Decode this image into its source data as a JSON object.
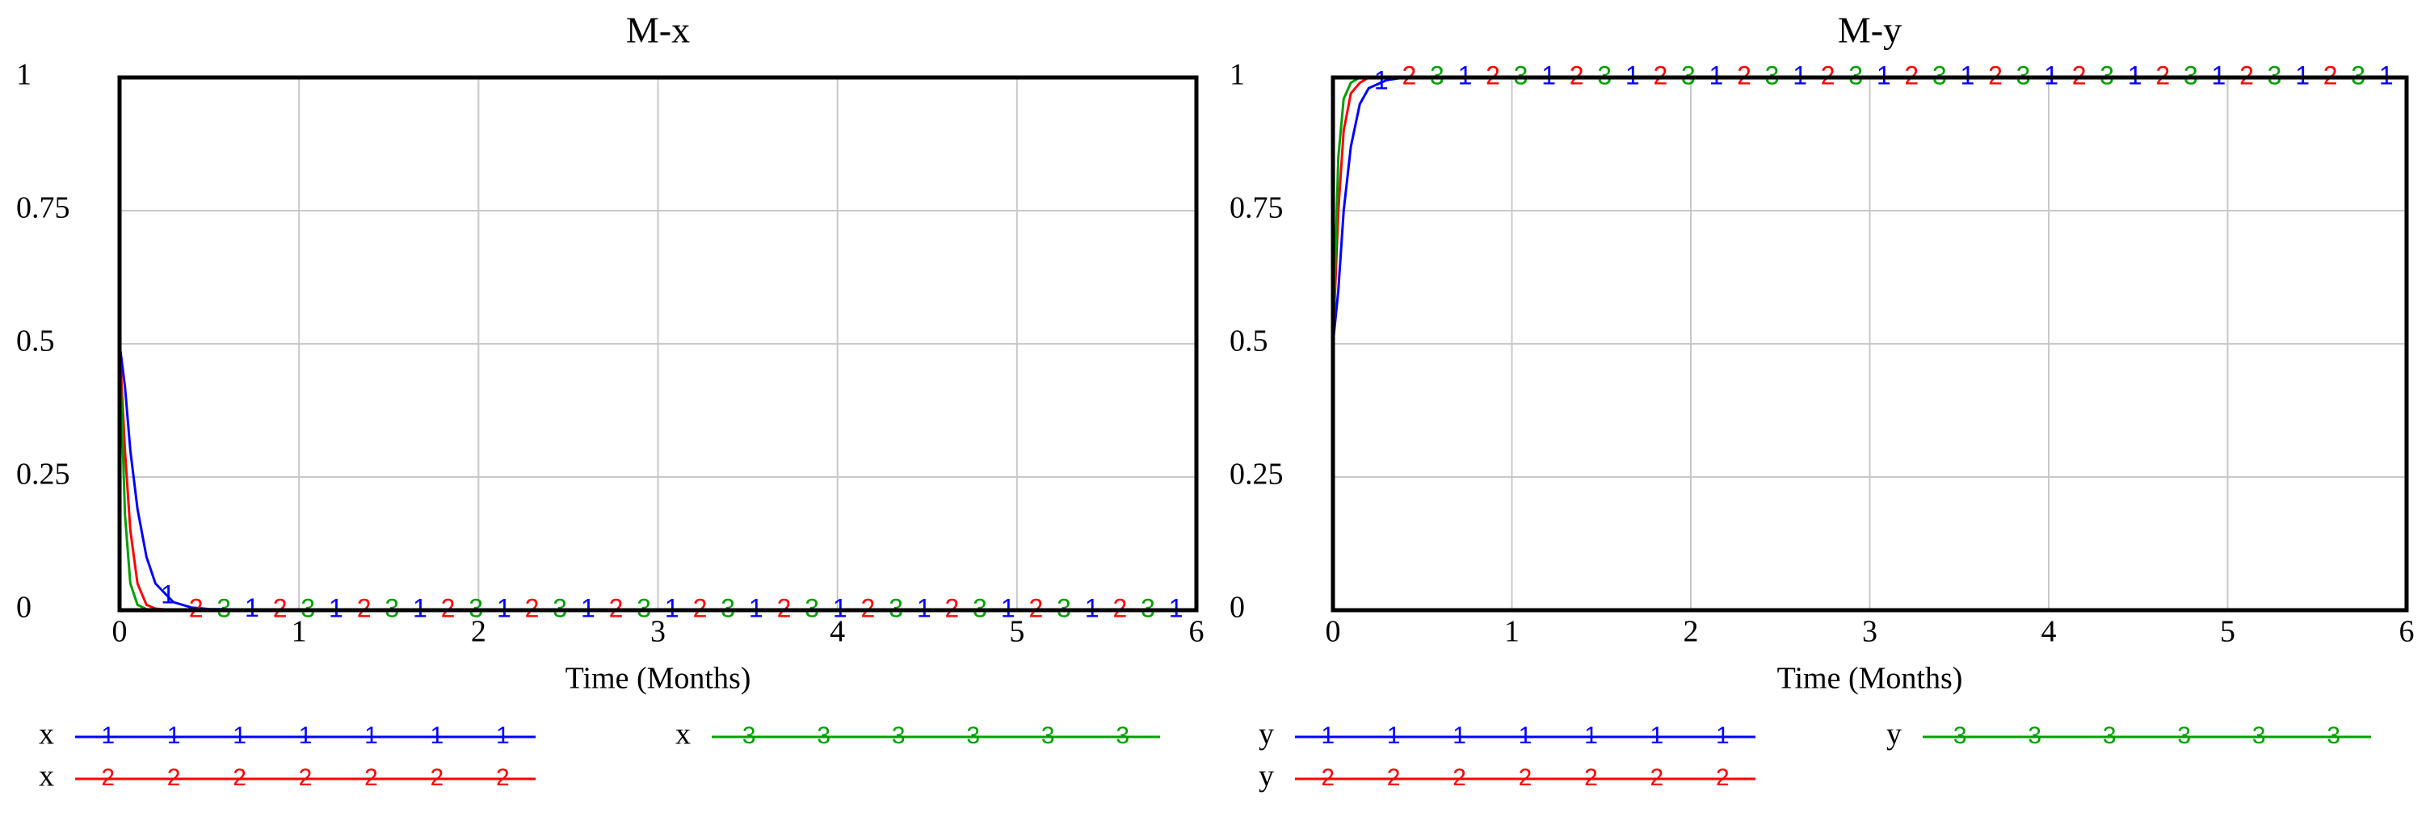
{
  "chart_data": [
    {
      "type": "line",
      "title": "M-x",
      "x_label": "Time (Months)",
      "x": [
        0,
        0.03,
        0.06,
        0.1,
        0.15,
        0.2,
        0.3,
        0.4,
        0.5,
        1,
        2,
        3,
        4,
        5,
        6
      ],
      "xlim": [
        0,
        6
      ],
      "xticks": [
        0,
        1,
        2,
        3,
        4,
        5,
        6
      ],
      "ylim": [
        0,
        1
      ],
      "yticks": [
        0,
        0.25,
        0.5,
        0.75,
        1
      ],
      "grid": true,
      "series": [
        {
          "name": "x",
          "marker": "1",
          "color": "#0000ff",
          "values": [
            0.5,
            0.42,
            0.3,
            0.19,
            0.1,
            0.05,
            0.015,
            0.005,
            0.002,
            0,
            0,
            0,
            0,
            0,
            0
          ]
        },
        {
          "name": "x",
          "marker": "2",
          "color": "#ff0000",
          "values": [
            0.5,
            0.3,
            0.15,
            0.05,
            0.01,
            0.003,
            0,
            0,
            0,
            0,
            0,
            0,
            0,
            0,
            0
          ]
        },
        {
          "name": "x",
          "marker": "3",
          "color": "#00a000",
          "values": [
            0.5,
            0.18,
            0.05,
            0.01,
            0.002,
            0,
            0,
            0,
            0,
            0,
            0,
            0,
            0,
            0,
            0
          ]
        }
      ]
    },
    {
      "type": "line",
      "title": "M-y",
      "x_label": "Time (Months)",
      "x": [
        0,
        0.03,
        0.06,
        0.1,
        0.15,
        0.2,
        0.3,
        0.4,
        0.5,
        1,
        2,
        3,
        4,
        5,
        6
      ],
      "xlim": [
        0,
        6
      ],
      "xticks": [
        0,
        1,
        2,
        3,
        4,
        5,
        6
      ],
      "ylim": [
        0,
        1
      ],
      "yticks": [
        0,
        0.25,
        0.5,
        0.75,
        1
      ],
      "grid": true,
      "series": [
        {
          "name": "y",
          "marker": "1",
          "color": "#0000ff",
          "values": [
            0.5,
            0.6,
            0.75,
            0.87,
            0.95,
            0.98,
            0.995,
            1,
            1,
            1,
            1,
            1,
            1,
            1,
            1
          ]
        },
        {
          "name": "y",
          "marker": "2",
          "color": "#ff0000",
          "values": [
            0.5,
            0.75,
            0.9,
            0.97,
            0.99,
            1,
            1,
            1,
            1,
            1,
            1,
            1,
            1,
            1,
            1
          ]
        },
        {
          "name": "y",
          "marker": "3",
          "color": "#00a000",
          "values": [
            0.5,
            0.85,
            0.96,
            0.99,
            1,
            1,
            1,
            1,
            1,
            1,
            1,
            1,
            1,
            1,
            1
          ]
        }
      ]
    }
  ]
}
